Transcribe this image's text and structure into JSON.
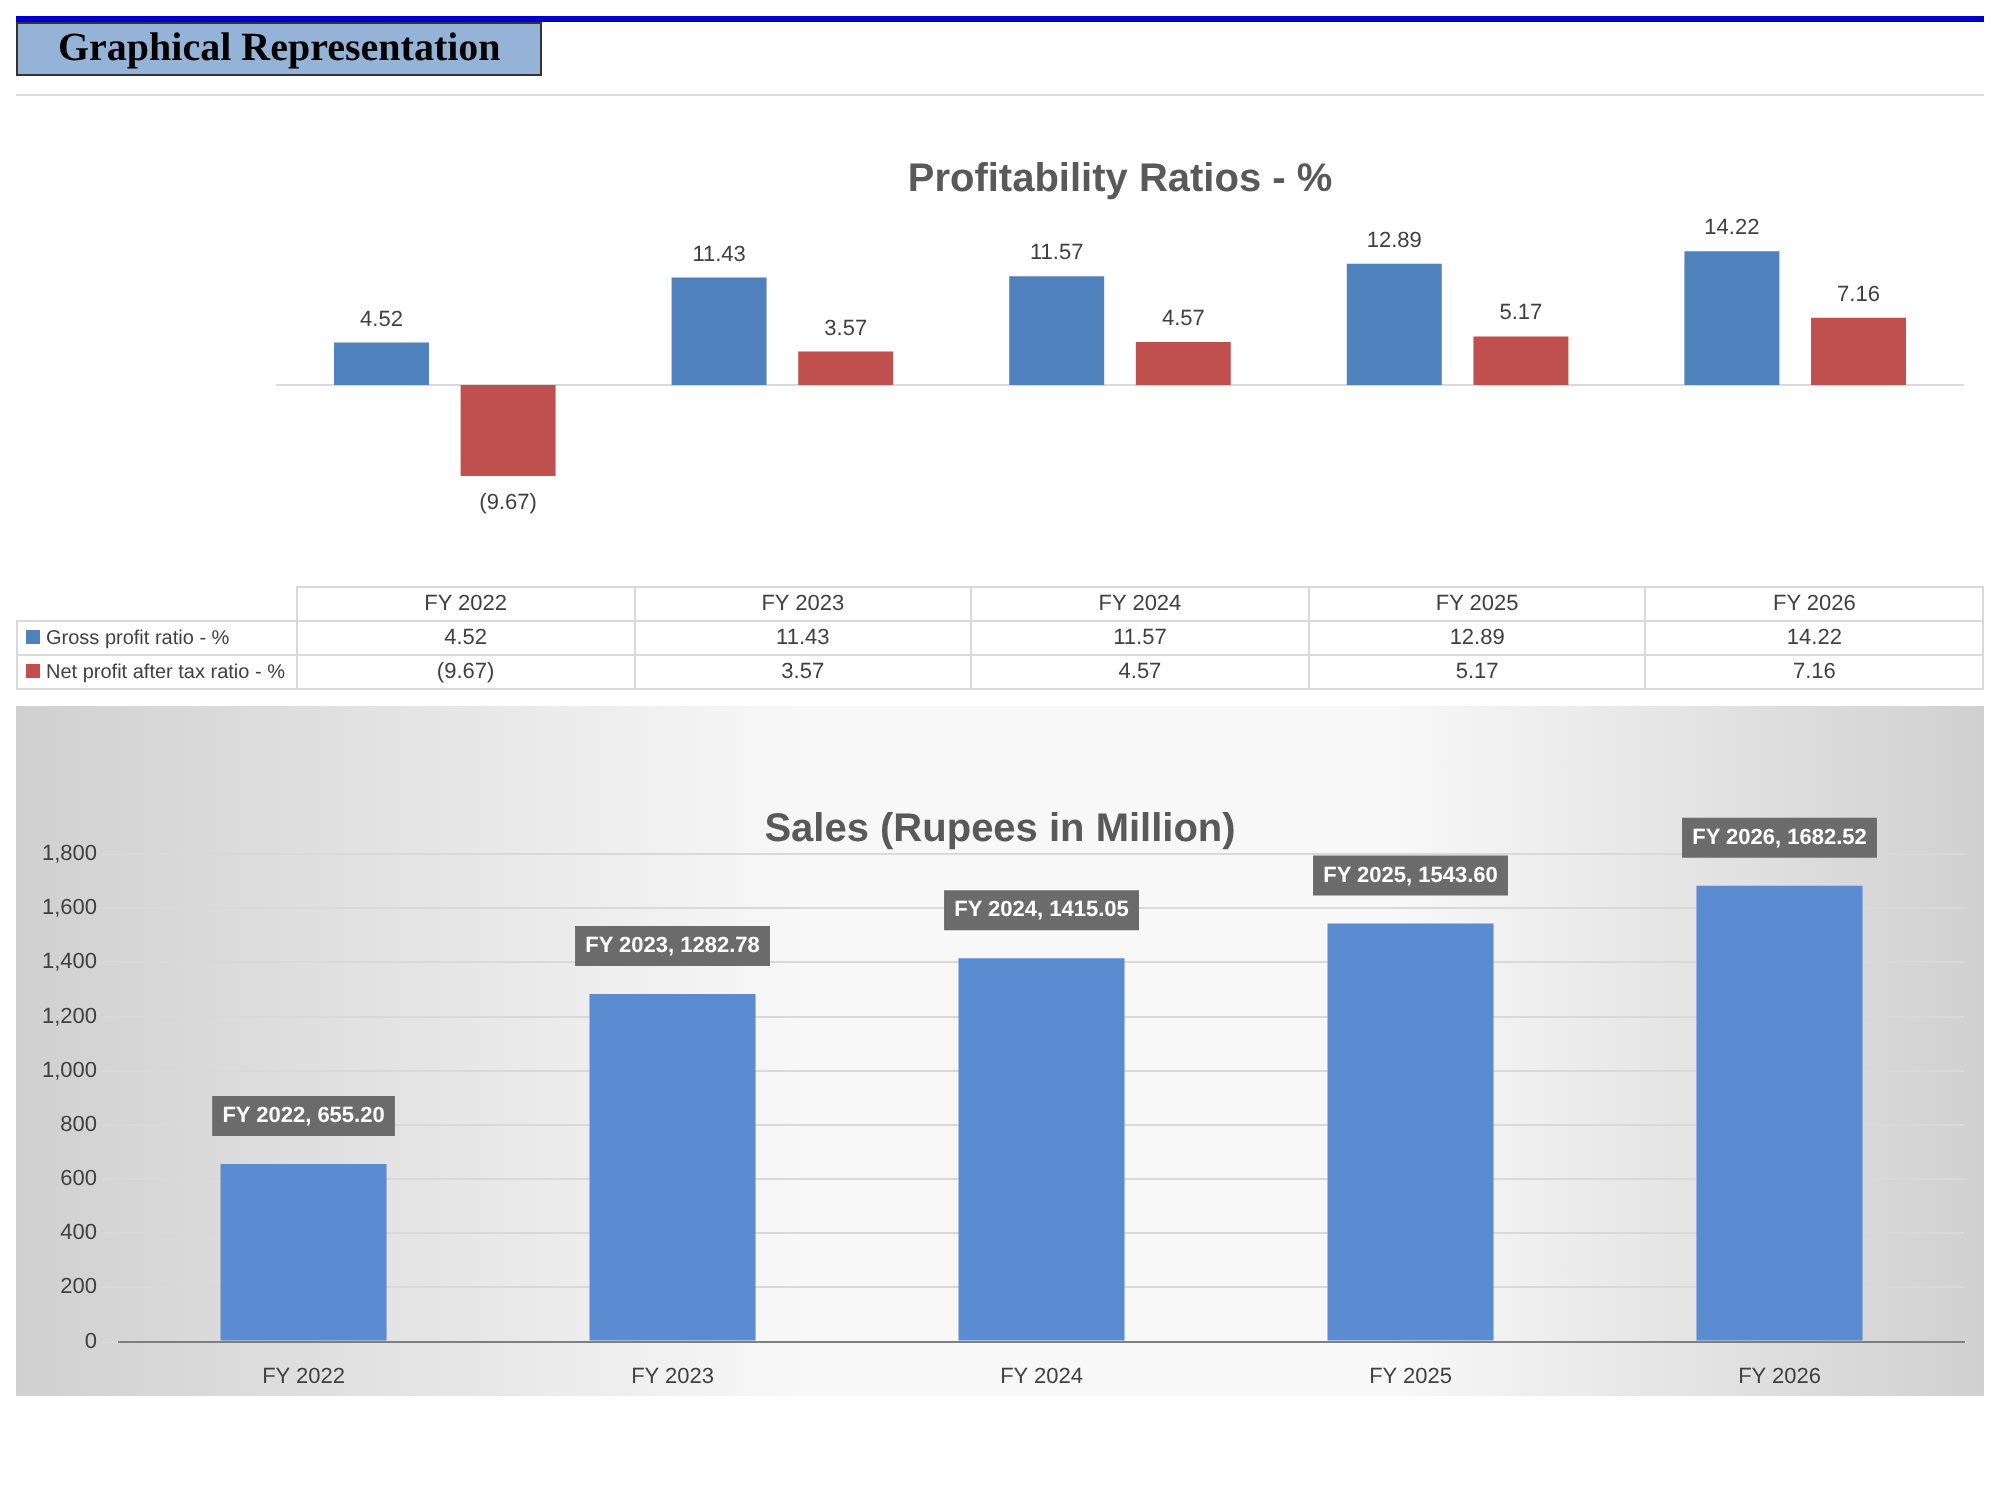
{
  "chart_data": [
    {
      "type": "bar",
      "title": "Profitability Ratios - %",
      "annotations": [
        "Graphical Representation"
      ],
      "categories": [
        "FY 2022",
        "FY 2023",
        "FY 2024",
        "FY 2025",
        "FY 2026"
      ],
      "tick_labels": "x",
      "data_labels": true,
      "legend": "bottom left",
      "series": [
        {
          "name": "Gross profit ratio - %",
          "color": "#4f81bd",
          "values": [
            4.52,
            11.43,
            11.57,
            12.89,
            14.22
          ],
          "value_labels": [
            "4.52",
            "11.43",
            "11.57",
            "12.89",
            "14.22"
          ]
        },
        {
          "name": "Net profit after tax ratio - %",
          "color": "#c0504d",
          "values": [
            -9.67,
            3.57,
            4.57,
            5.17,
            7.16
          ],
          "value_labels": [
            "(9.67)",
            "3.57",
            "4.57",
            "5.17",
            "7.16"
          ]
        }
      ]
    },
    {
      "type": "bar",
      "title": "Sales (Rupees in Million)",
      "categories": [
        "FY 2022",
        "FY 2023",
        "FY 2024",
        "FY 2025",
        "FY 2026"
      ],
      "grid": "y",
      "ylim": [
        0,
        1800
      ],
      "yticks": [
        {
          "value": 0,
          "label": "0"
        },
        {
          "value": 200,
          "label": "200"
        },
        {
          "value": 400,
          "label": "400"
        },
        {
          "value": 600,
          "label": "600"
        },
        {
          "value": 800,
          "label": "800"
        },
        {
          "value": 1000,
          "label": "1,000"
        },
        {
          "value": 1200,
          "label": "1,200"
        },
        {
          "value": 1400,
          "label": "1,400"
        },
        {
          "value": 1600,
          "label": "1,600"
        },
        {
          "value": 1800,
          "label": "1,800"
        }
      ],
      "series": [
        {
          "color": "#5b8bd0",
          "values": [
            655.2,
            1282.78,
            1415.05,
            1543.6,
            1682.52
          ],
          "value_labels": [
            "FY 2022, 655.20",
            "FY 2023, 1282.78",
            "FY 2024, 1415.05",
            "FY 2025, 1543.60",
            "FY 2026, 1682.52"
          ]
        }
      ]
    }
  ]
}
